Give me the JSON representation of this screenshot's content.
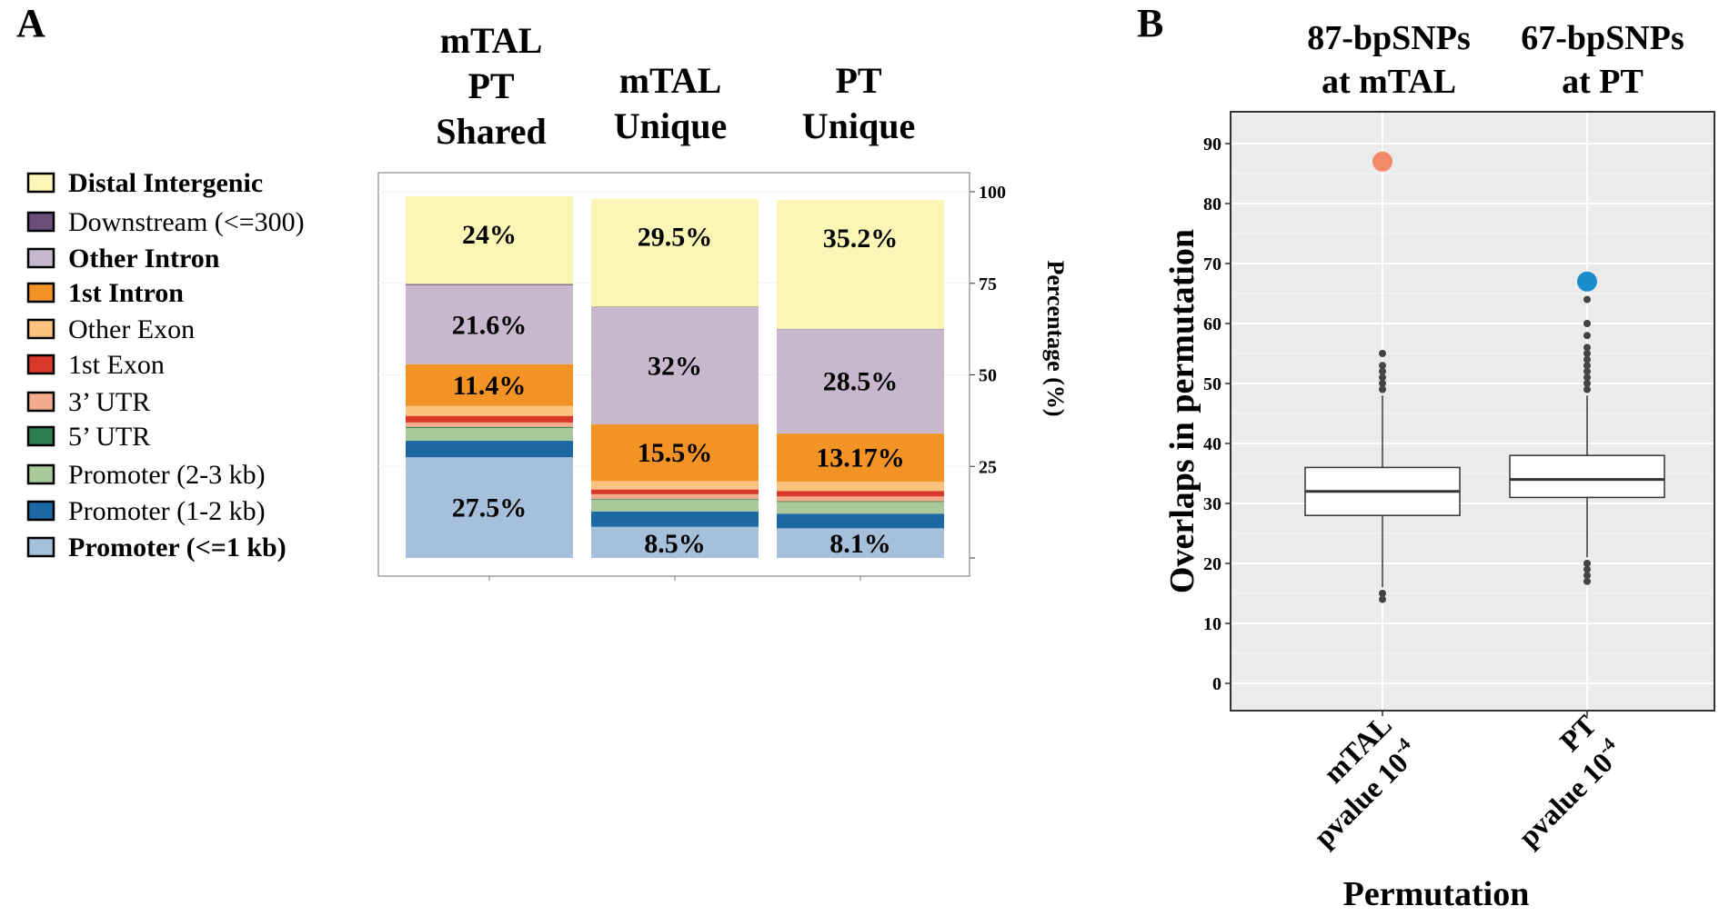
{
  "panel_a_letter": "A",
  "panel_b_letter": "B",
  "chart_data": [
    {
      "type": "bar",
      "stacked": true,
      "panel": "A",
      "categories": [
        "mTAL\nPT\nShared",
        "mTAL\nUnique",
        "PT\nUnique"
      ],
      "column_titles": [
        [
          "mTAL",
          "PT",
          "Shared"
        ],
        [
          "mTAL",
          "Unique"
        ],
        [
          "PT",
          "Unique"
        ]
      ],
      "ylabel": "Percentage (%)",
      "ylim": [
        0,
        100
      ],
      "yticks": [
        "25",
        "50",
        "75",
        "100"
      ],
      "ytick_values": [
        25,
        50,
        75,
        100
      ],
      "stack_order_bottom_to_top": [
        "Promoter (<=1 kb)",
        "Promoter (1-2 kb)",
        "Promoter (2-3 kb)",
        "5' UTR",
        "3' UTR",
        "1st Exon",
        "Other Exon",
        "1st Intron",
        "Other Intron",
        "Downstream (<=300)",
        "Distal Intergenic"
      ],
      "series": [
        {
          "name": "Promoter (<=1 kb)",
          "color": "#a6bfdb",
          "values": [
            27.5,
            8.5,
            8.1
          ]
        },
        {
          "name": "Promoter (1-2 kb)",
          "color": "#1c68a3",
          "values": [
            4.5,
            4.2,
            4.0
          ]
        },
        {
          "name": "Promoter (2-3 kb)",
          "color": "#a9c99b",
          "values": [
            3.5,
            3.2,
            3.2
          ]
        },
        {
          "name": "5' UTR",
          "color": "#2e7d4f",
          "values": [
            0.3,
            0.2,
            0.2
          ]
        },
        {
          "name": "3' UTR",
          "color": "#f4aa8c",
          "values": [
            1.2,
            1.3,
            1.3
          ]
        },
        {
          "name": "1st Exon",
          "color": "#d9392b",
          "values": [
            1.8,
            1.3,
            1.5
          ]
        },
        {
          "name": "Other Exon",
          "color": "#fdc27e",
          "values": [
            2.7,
            2.3,
            2.5
          ]
        },
        {
          "name": "1st Intron",
          "color": "#f39325",
          "values": [
            11.4,
            15.5,
            13.17
          ]
        },
        {
          "name": "Other Intron",
          "color": "#c8b8cd",
          "values": [
            21.6,
            32.0,
            28.5
          ]
        },
        {
          "name": "Downstream (<=300)",
          "color": "#6b4f78",
          "values": [
            0.3,
            0.1,
            0.1
          ]
        },
        {
          "name": "Distal Intergenic",
          "color": "#fbf6b5",
          "values": [
            24.0,
            29.5,
            35.2
          ]
        }
      ],
      "segment_labels": [
        {
          "bar": 0,
          "series": "Distal Intergenic",
          "text": "24%"
        },
        {
          "bar": 0,
          "series": "Other Intron",
          "text": "21.6%"
        },
        {
          "bar": 0,
          "series": "1st Intron",
          "text": "11.4%"
        },
        {
          "bar": 0,
          "series": "Promoter (<=1 kb)",
          "text": "27.5%"
        },
        {
          "bar": 1,
          "series": "Distal Intergenic",
          "text": "29.5%"
        },
        {
          "bar": 1,
          "series": "Other Intron",
          "text": "32%"
        },
        {
          "bar": 1,
          "series": "1st Intron",
          "text": "15.5%"
        },
        {
          "bar": 1,
          "series": "Promoter (<=1 kb)",
          "text": "8.5%"
        },
        {
          "bar": 2,
          "series": "Distal Intergenic",
          "text": "35.2%"
        },
        {
          "bar": 2,
          "series": "Other Intron",
          "text": "28.5%"
        },
        {
          "bar": 2,
          "series": "1st Intron",
          "text": "13.17%"
        },
        {
          "bar": 2,
          "series": "Promoter (<=1 kb)",
          "text": "8.1%"
        }
      ],
      "legend": [
        {
          "label": "Distal Intergenic",
          "color": "#fbf6b5",
          "bold": true
        },
        {
          "label": "Downstream (<=300)",
          "color": "#6b4f78",
          "bold": false
        },
        {
          "label": "Other Intron",
          "color": "#c8b8cd",
          "bold": true
        },
        {
          "label": "1st Intron",
          "color": "#f39325",
          "bold": true
        },
        {
          "label": "Other Exon",
          "color": "#fdc27e",
          "bold": false
        },
        {
          "label": "1st Exon",
          "color": "#d9392b",
          "bold": false
        },
        {
          "label": "3’ UTR",
          "color": "#f4aa8c",
          "bold": false
        },
        {
          "label": "5’ UTR",
          "color": "#2e7d4f",
          "bold": false
        },
        {
          "label": "Promoter (2-3 kb)",
          "color": "#a9c99b",
          "bold": false
        },
        {
          "label": "Promoter (1-2 kb)",
          "color": "#1c68a3",
          "bold": false
        },
        {
          "label": "Promoter (<=1 kb)",
          "color": "#a6bfdb",
          "bold": true
        }
      ],
      "legend_position": "left"
    },
    {
      "type": "box",
      "panel": "B",
      "title_columns": [
        [
          "87-bpSNPs",
          "at mTAL"
        ],
        [
          "67-bpSNPs",
          "at PT"
        ]
      ],
      "xlabel": "Permutation",
      "ylabel": "Overlaps in permutation",
      "ylim": [
        -5,
        95
      ],
      "yticks": [
        "0",
        "10",
        "20",
        "30",
        "40",
        "50",
        "60",
        "70",
        "80",
        "90"
      ],
      "ytick_values": [
        0,
        10,
        20,
        30,
        40,
        50,
        60,
        70,
        80,
        90
      ],
      "categories": [
        {
          "name": "mTAL",
          "pvalue_prefix": "pvalue 10",
          "pvalue_exp": "-4"
        },
        {
          "name": "PT",
          "pvalue_prefix": "pvalue 10",
          "pvalue_exp": "-4"
        }
      ],
      "boxes": [
        {
          "q1": 28,
          "median": 32,
          "q3": 36,
          "whisker_low": 16,
          "whisker_high": 48,
          "outliers": [
            14,
            15,
            49,
            50,
            51,
            52,
            53,
            55
          ]
        },
        {
          "q1": 31,
          "median": 34,
          "q3": 38,
          "whisker_low": 21,
          "whisker_high": 48,
          "outliers": [
            17,
            18,
            19,
            20,
            49,
            50,
            51,
            52,
            53,
            54,
            55,
            56,
            58,
            60,
            64
          ]
        }
      ],
      "observed": [
        {
          "category": "mTAL",
          "value": 87,
          "color": "#f18a6b"
        },
        {
          "category": "PT",
          "value": 67,
          "color": "#1a8ccb"
        }
      ],
      "grid": true,
      "panel_background": "#ebebeb"
    }
  ]
}
